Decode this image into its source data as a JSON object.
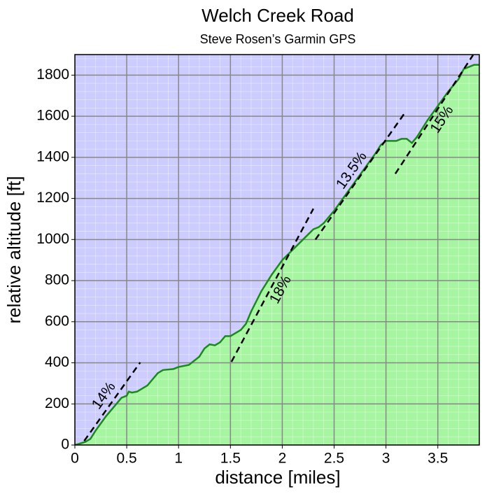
{
  "chart_data": {
    "type": "area",
    "title": "Welch Creek Road",
    "subtitle": "Steve Rosen’s Garmin GPS",
    "x_label": "distance [miles]",
    "y_label": "relative altitude [ft]",
    "xlim": [
      0,
      3.9
    ],
    "ylim": [
      0,
      1900
    ],
    "xticks": [
      0,
      0.5,
      1,
      1.5,
      2,
      2.5,
      3,
      3.5
    ],
    "yticks": [
      0,
      200,
      400,
      600,
      800,
      1000,
      1200,
      1400,
      1600,
      1800
    ],
    "grid": true,
    "background_color": "#ccccff",
    "x": [
      0,
      0.1,
      0.15,
      0.2,
      0.3,
      0.4,
      0.45,
      0.5,
      0.52,
      0.55,
      0.6,
      0.7,
      0.8,
      0.85,
      0.95,
      1.0,
      1.1,
      1.2,
      1.25,
      1.3,
      1.35,
      1.4,
      1.45,
      1.5,
      1.6,
      1.65,
      1.7,
      1.8,
      1.9,
      2.0,
      2.1,
      2.2,
      2.3,
      2.35,
      2.4,
      2.5,
      2.6,
      2.7,
      2.8,
      2.9,
      2.95,
      3.0,
      3.05,
      3.1,
      3.15,
      3.2,
      3.25,
      3.3,
      3.4,
      3.5,
      3.6,
      3.7,
      3.75,
      3.85,
      3.9
    ],
    "series": [
      {
        "color": "#1a8a1a",
        "fill": "#a6f5a0",
        "values": [
          0,
          15,
          30,
          70,
          140,
          200,
          230,
          240,
          260,
          255,
          260,
          290,
          350,
          365,
          370,
          380,
          390,
          430,
          470,
          490,
          485,
          500,
          530,
          530,
          560,
          590,
          650,
          750,
          830,
          900,
          950,
          1000,
          1050,
          1060,
          1080,
          1140,
          1210,
          1280,
          1350,
          1420,
          1460,
          1480,
          1480,
          1480,
          1490,
          1490,
          1470,
          1500,
          1580,
          1650,
          1720,
          1780,
          1830,
          1850,
          1850
        ]
      }
    ],
    "grade_lines": [
      {
        "label": "14%",
        "x": [
          0.09,
          0.63
        ],
        "y": [
          20,
          402
        ]
      },
      {
        "label": "18%",
        "x": [
          1.51,
          2.3
        ],
        "y": [
          405,
          1150
        ]
      },
      {
        "label": "13.5%",
        "x": [
          2.32,
          3.18
        ],
        "y": [
          1000,
          1615
        ]
      },
      {
        "label": "15%",
        "x": [
          3.09,
          3.84
        ],
        "y": [
          1320,
          1898
        ]
      }
    ]
  }
}
